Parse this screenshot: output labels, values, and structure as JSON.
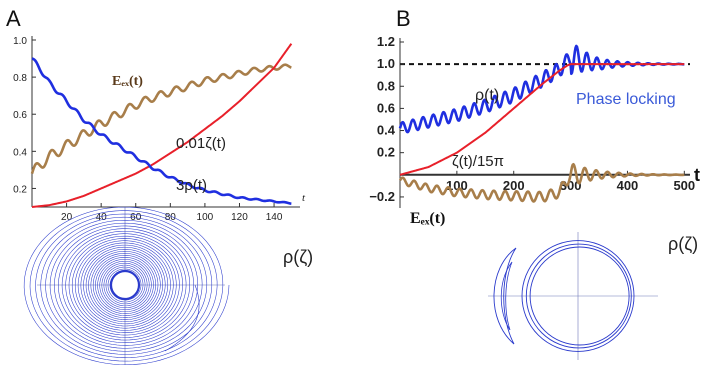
{
  "figure": {
    "panel_a_letter": "A",
    "panel_b_letter": "B",
    "panel_a_inset_label": "ρ(ζ)",
    "panel_b_inset_label": "ρ(ζ)"
  },
  "chart_data": [
    {
      "type": "line",
      "panel": "A",
      "xlabel": "t",
      "ylabel": "",
      "xlim": [
        0,
        155
      ],
      "ylim": [
        0.1,
        1.0
      ],
      "x_ticks": [
        20,
        40,
        60,
        80,
        100,
        120,
        140
      ],
      "y_ticks": [
        0.2,
        0.4,
        0.6,
        0.8,
        1.0
      ],
      "x_tick_labels": [
        "20",
        "40",
        "60",
        "80",
        "100",
        "120",
        "140"
      ],
      "y_tick_labels": [
        "0.2",
        "0.4",
        "0.6",
        "0.8",
        "1.0"
      ],
      "grid": false,
      "annotations": [
        {
          "text": "Eₑₓ(t)",
          "series": "brown"
        },
        {
          "text": "0.01ζ(t)",
          "series": "red"
        },
        {
          "text": "3ρ(t)",
          "series": "blue"
        }
      ],
      "series": [
        {
          "color": "#a87e4a",
          "x": [
            0,
            5,
            10,
            20,
            30,
            40,
            50,
            60,
            70,
            80,
            90,
            100,
            110,
            120,
            130,
            140,
            150
          ],
          "values": [
            0.28,
            0.33,
            0.37,
            0.43,
            0.49,
            0.55,
            0.6,
            0.65,
            0.69,
            0.72,
            0.75,
            0.78,
            0.8,
            0.82,
            0.84,
            0.85,
            0.86
          ],
          "oscillation_amplitude": [
            0.03,
            0.01
          ],
          "oscillation_period": 9
        },
        {
          "color": "#e8202a",
          "x": [
            0,
            10,
            20,
            30,
            40,
            50,
            60,
            70,
            80,
            90,
            100,
            110,
            120,
            130,
            140,
            150
          ],
          "values": [
            0.1,
            0.11,
            0.13,
            0.16,
            0.2,
            0.24,
            0.28,
            0.33,
            0.39,
            0.45,
            0.52,
            0.59,
            0.67,
            0.76,
            0.85,
            0.98
          ]
        },
        {
          "color": "#1f2fe0",
          "x": [
            0,
            5,
            10,
            20,
            30,
            40,
            50,
            60,
            70,
            80,
            90,
            100,
            110,
            120,
            130,
            140,
            150
          ],
          "values": [
            0.9,
            0.84,
            0.77,
            0.67,
            0.57,
            0.49,
            0.43,
            0.37,
            0.31,
            0.26,
            0.22,
            0.19,
            0.17,
            0.15,
            0.14,
            0.13,
            0.12
          ],
          "oscillation_amplitude": [
            0.012,
            0.002
          ],
          "oscillation_period": 8
        }
      ]
    },
    {
      "type": "line",
      "panel": "B",
      "xlabel": "t",
      "ylabel": "",
      "xlim": [
        0,
        510
      ],
      "ylim": [
        -0.3,
        1.2
      ],
      "x_ticks": [
        100,
        200,
        300,
        400,
        500
      ],
      "y_ticks": [
        -0.2,
        0.2,
        0.4,
        0.6,
        0.8,
        1.0,
        1.2
      ],
      "x_tick_labels": [
        "100",
        "200",
        "300",
        "400",
        "500"
      ],
      "y_tick_labels": [
        "−0.2",
        "0.2",
        "0.4",
        "0.6",
        "0.8",
        "1.0",
        "1.2"
      ],
      "reference_line": {
        "y": 1.0,
        "style": "dashed"
      },
      "grid": false,
      "annotations": [
        {
          "text": "ρ(t)",
          "series": "blue"
        },
        {
          "text": "Phase locking",
          "series": "blue"
        },
        {
          "text": "ζ(t)/15π",
          "series": "red"
        },
        {
          "text": "Eₑₓ(t)",
          "series": "brown"
        }
      ],
      "series": [
        {
          "color": "#1f2fe0",
          "x": [
            0,
            50,
            100,
            150,
            200,
            250,
            280,
            300,
            320,
            350,
            400,
            450,
            500
          ],
          "values": [
            0.42,
            0.48,
            0.54,
            0.62,
            0.72,
            0.86,
            0.95,
            1.06,
            1.03,
            1.0,
            1.0,
            1.0,
            1.0
          ],
          "oscillation_amplitude": [
            0.05,
            0.08
          ],
          "oscillation_period": 18
        },
        {
          "color": "#e8202a",
          "x": [
            0,
            50,
            100,
            150,
            200,
            250,
            280,
            295,
            300,
            350,
            400,
            450,
            500
          ],
          "values": [
            0.0,
            0.07,
            0.2,
            0.38,
            0.6,
            0.82,
            0.94,
            0.99,
            1.0,
            1.0,
            1.0,
            1.0,
            1.0
          ]
        },
        {
          "color": "#a87e4a",
          "x": [
            0,
            50,
            100,
            150,
            200,
            250,
            280,
            300,
            330,
            360,
            400,
            450,
            500
          ],
          "values": [
            -0.05,
            -0.12,
            -0.16,
            -0.18,
            -0.19,
            -0.2,
            -0.16,
            0.0,
            0.0,
            0.0,
            0.0,
            0.0,
            0.0
          ],
          "oscillation_amplitude": [
            0.03,
            0.06
          ],
          "oscillation_period": 20
        }
      ]
    }
  ]
}
